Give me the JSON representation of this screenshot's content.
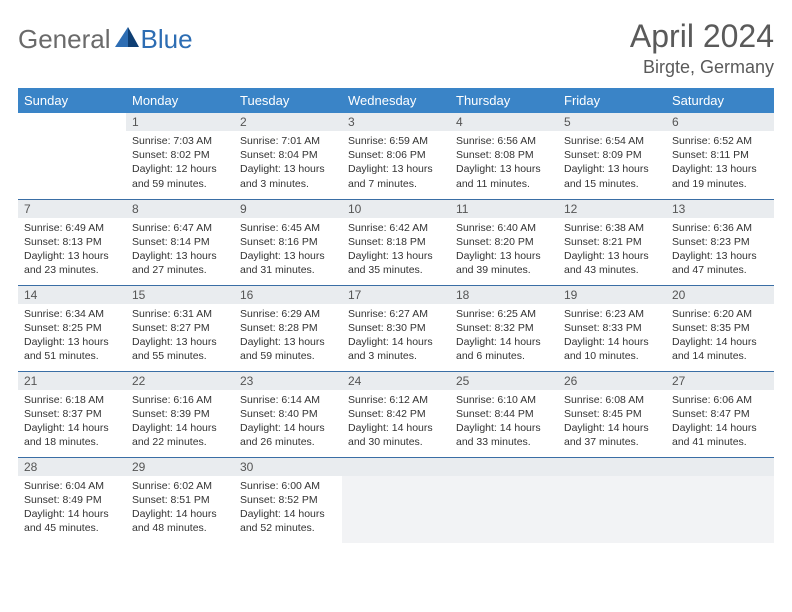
{
  "brand": {
    "part1": "General",
    "part2": "Blue"
  },
  "title": "April 2024",
  "location": "Birgte, Germany",
  "colors": {
    "header_bg": "#3a84c7",
    "header_text": "#ffffff",
    "daynum_bg": "#e9ecef",
    "border": "#3a6ea5",
    "logo_gray": "#6a6a6a",
    "logo_blue": "#2d6db3",
    "title_color": "#5a5a5a"
  },
  "weekdays": [
    "Sunday",
    "Monday",
    "Tuesday",
    "Wednesday",
    "Thursday",
    "Friday",
    "Saturday"
  ],
  "layout": {
    "week_start": "Sunday",
    "first_day_column": 1,
    "rows": 5,
    "cols": 7
  },
  "days": [
    {
      "n": 1,
      "sunrise": "7:03 AM",
      "sunset": "8:02 PM",
      "dl": "12 hours and 59 minutes."
    },
    {
      "n": 2,
      "sunrise": "7:01 AM",
      "sunset": "8:04 PM",
      "dl": "13 hours and 3 minutes."
    },
    {
      "n": 3,
      "sunrise": "6:59 AM",
      "sunset": "8:06 PM",
      "dl": "13 hours and 7 minutes."
    },
    {
      "n": 4,
      "sunrise": "6:56 AM",
      "sunset": "8:08 PM",
      "dl": "13 hours and 11 minutes."
    },
    {
      "n": 5,
      "sunrise": "6:54 AM",
      "sunset": "8:09 PM",
      "dl": "13 hours and 15 minutes."
    },
    {
      "n": 6,
      "sunrise": "6:52 AM",
      "sunset": "8:11 PM",
      "dl": "13 hours and 19 minutes."
    },
    {
      "n": 7,
      "sunrise": "6:49 AM",
      "sunset": "8:13 PM",
      "dl": "13 hours and 23 minutes."
    },
    {
      "n": 8,
      "sunrise": "6:47 AM",
      "sunset": "8:14 PM",
      "dl": "13 hours and 27 minutes."
    },
    {
      "n": 9,
      "sunrise": "6:45 AM",
      "sunset": "8:16 PM",
      "dl": "13 hours and 31 minutes."
    },
    {
      "n": 10,
      "sunrise": "6:42 AM",
      "sunset": "8:18 PM",
      "dl": "13 hours and 35 minutes."
    },
    {
      "n": 11,
      "sunrise": "6:40 AM",
      "sunset": "8:20 PM",
      "dl": "13 hours and 39 minutes."
    },
    {
      "n": 12,
      "sunrise": "6:38 AM",
      "sunset": "8:21 PM",
      "dl": "13 hours and 43 minutes."
    },
    {
      "n": 13,
      "sunrise": "6:36 AM",
      "sunset": "8:23 PM",
      "dl": "13 hours and 47 minutes."
    },
    {
      "n": 14,
      "sunrise": "6:34 AM",
      "sunset": "8:25 PM",
      "dl": "13 hours and 51 minutes."
    },
    {
      "n": 15,
      "sunrise": "6:31 AM",
      "sunset": "8:27 PM",
      "dl": "13 hours and 55 minutes."
    },
    {
      "n": 16,
      "sunrise": "6:29 AM",
      "sunset": "8:28 PM",
      "dl": "13 hours and 59 minutes."
    },
    {
      "n": 17,
      "sunrise": "6:27 AM",
      "sunset": "8:30 PM",
      "dl": "14 hours and 3 minutes."
    },
    {
      "n": 18,
      "sunrise": "6:25 AM",
      "sunset": "8:32 PM",
      "dl": "14 hours and 6 minutes."
    },
    {
      "n": 19,
      "sunrise": "6:23 AM",
      "sunset": "8:33 PM",
      "dl": "14 hours and 10 minutes."
    },
    {
      "n": 20,
      "sunrise": "6:20 AM",
      "sunset": "8:35 PM",
      "dl": "14 hours and 14 minutes."
    },
    {
      "n": 21,
      "sunrise": "6:18 AM",
      "sunset": "8:37 PM",
      "dl": "14 hours and 18 minutes."
    },
    {
      "n": 22,
      "sunrise": "6:16 AM",
      "sunset": "8:39 PM",
      "dl": "14 hours and 22 minutes."
    },
    {
      "n": 23,
      "sunrise": "6:14 AM",
      "sunset": "8:40 PM",
      "dl": "14 hours and 26 minutes."
    },
    {
      "n": 24,
      "sunrise": "6:12 AM",
      "sunset": "8:42 PM",
      "dl": "14 hours and 30 minutes."
    },
    {
      "n": 25,
      "sunrise": "6:10 AM",
      "sunset": "8:44 PM",
      "dl": "14 hours and 33 minutes."
    },
    {
      "n": 26,
      "sunrise": "6:08 AM",
      "sunset": "8:45 PM",
      "dl": "14 hours and 37 minutes."
    },
    {
      "n": 27,
      "sunrise": "6:06 AM",
      "sunset": "8:47 PM",
      "dl": "14 hours and 41 minutes."
    },
    {
      "n": 28,
      "sunrise": "6:04 AM",
      "sunset": "8:49 PM",
      "dl": "14 hours and 45 minutes."
    },
    {
      "n": 29,
      "sunrise": "6:02 AM",
      "sunset": "8:51 PM",
      "dl": "14 hours and 48 minutes."
    },
    {
      "n": 30,
      "sunrise": "6:00 AM",
      "sunset": "8:52 PM",
      "dl": "14 hours and 52 minutes."
    }
  ],
  "labels": {
    "sunrise": "Sunrise:",
    "sunset": "Sunset:",
    "daylight": "Daylight:"
  }
}
